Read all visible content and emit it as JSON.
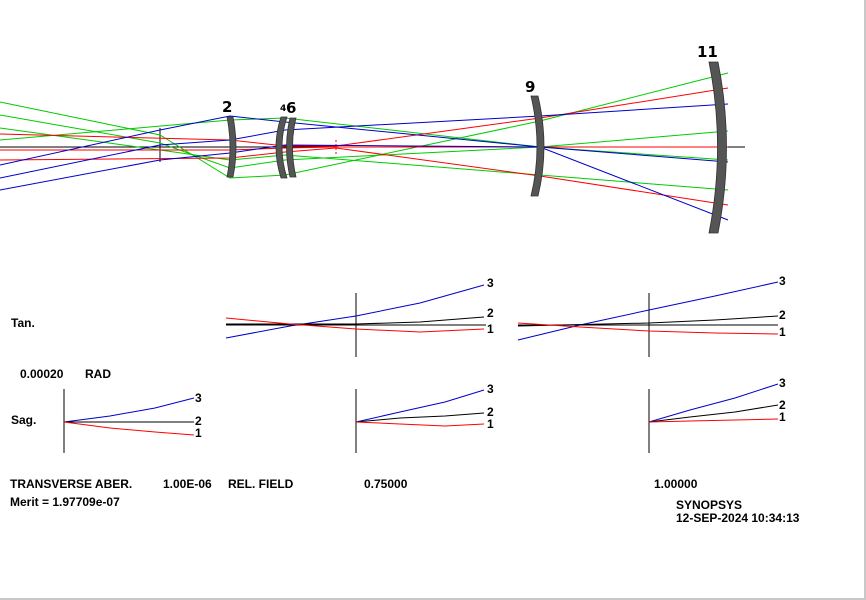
{
  "surfaces": [
    {
      "label": "2"
    },
    {
      "label": "4"
    },
    {
      "label": "6"
    },
    {
      "label": "9"
    },
    {
      "label": "11"
    }
  ],
  "aberration": {
    "tan_label": "Tan.",
    "sag_label": "Sag.",
    "scale_value": "0.00020",
    "scale_unit": "RAD",
    "fan_labels": [
      "1",
      "2",
      "3"
    ]
  },
  "footer": {
    "title": "TRANSVERSE ABER.",
    "wavelength": "1.00E-06",
    "field_label": "REL. FIELD",
    "field_075": "0.75000",
    "field_100": "1.00000",
    "merit": "Merit = 1.97709e-07",
    "brand": "SYNOPSYS",
    "timestamp": "12-SEP-2024 10:34:13"
  },
  "colors": {
    "ray_green": "#00cc00",
    "ray_red": "#ff0000",
    "ray_blue": "#0000cc",
    "lens": "#555555",
    "axis": "#000000"
  }
}
